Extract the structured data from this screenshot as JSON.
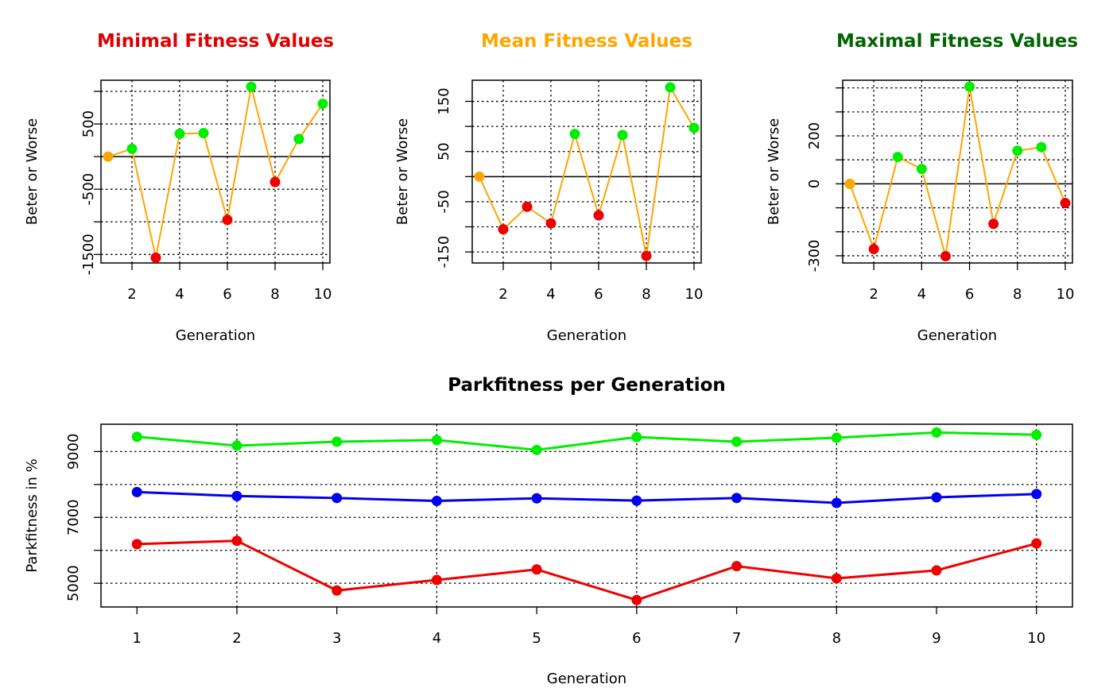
{
  "chart_data": [
    {
      "type": "line",
      "title": "Minimal Fitness Values",
      "title_color": "#e00000",
      "xlabel": "Generation",
      "ylabel": "Beter or Worse",
      "x": [
        1,
        2,
        3,
        4,
        5,
        6,
        7,
        8,
        9,
        10
      ],
      "values": [
        0,
        120,
        -1550,
        350,
        360,
        -970,
        1070,
        -390,
        270,
        810
      ],
      "point_colors": [
        "#ffa500",
        "#00ee00",
        "#ee0000",
        "#00ee00",
        "#00ee00",
        "#ee0000",
        "#00ee00",
        "#ee0000",
        "#00ee00",
        "#00ee00"
      ],
      "line_color": "#ffa500",
      "xlim": [
        0.7,
        10.3
      ],
      "ylim": [
        -1630,
        1170
      ],
      "xticks": [
        2,
        4,
        6,
        8,
        10
      ],
      "xticklabels": [
        "2",
        "4",
        "6",
        "8",
        "10"
      ],
      "yticks": [
        -1500,
        -1000,
        -500,
        0,
        500,
        1000
      ],
      "yticklabels": [
        "-1500",
        "",
        "-500",
        "",
        "500",
        ""
      ],
      "xgrid": [
        2,
        4,
        6,
        8,
        10
      ],
      "ygrid": [
        -1500,
        -1000,
        -500,
        500,
        1000
      ],
      "zero_line": true
    },
    {
      "type": "line",
      "title": "Mean Fitness Values",
      "title_color": "#ffa500",
      "xlabel": "Generation",
      "ylabel": "Beter or Worse",
      "x": [
        1,
        2,
        3,
        4,
        5,
        6,
        7,
        8,
        9,
        10
      ],
      "values": [
        0,
        -105,
        -60,
        -93,
        85,
        -77,
        83,
        -158,
        178,
        97
      ],
      "point_colors": [
        "#ffa500",
        "#ee0000",
        "#ee0000",
        "#ee0000",
        "#00ee00",
        "#ee0000",
        "#00ee00",
        "#ee0000",
        "#00ee00",
        "#00ee00"
      ],
      "line_color": "#ffa500",
      "xlim": [
        0.7,
        10.3
      ],
      "ylim": [
        -172,
        192
      ],
      "xticks": [
        2,
        4,
        6,
        8,
        10
      ],
      "xticklabels": [
        "2",
        "4",
        "6",
        "8",
        "10"
      ],
      "yticks": [
        -150,
        -100,
        -50,
        0,
        50,
        100,
        150
      ],
      "yticklabels": [
        "-150",
        "",
        "-50",
        "",
        "50",
        "",
        "150"
      ],
      "xgrid": [
        2,
        4,
        6,
        8,
        10
      ],
      "ygrid": [
        -150,
        -100,
        -50,
        50,
        100,
        150
      ],
      "zero_line": true
    },
    {
      "type": "line",
      "title": "Maximal Fitness Values",
      "title_color": "#006400",
      "xlabel": "Generation",
      "ylabel": "Beter or Worse",
      "x": [
        1,
        2,
        3,
        4,
        5,
        6,
        7,
        8,
        9,
        10
      ],
      "values": [
        0,
        -272,
        112,
        62,
        -302,
        405,
        -167,
        138,
        153,
        -80
      ],
      "point_colors": [
        "#ffa500",
        "#ee0000",
        "#00ee00",
        "#00ee00",
        "#ee0000",
        "#00ee00",
        "#ee0000",
        "#00ee00",
        "#00ee00",
        "#ee0000"
      ],
      "line_color": "#ffa500",
      "xlim": [
        0.7,
        10.3
      ],
      "ylim": [
        -330,
        432
      ],
      "xticks": [
        2,
        4,
        6,
        8,
        10
      ],
      "xticklabels": [
        "2",
        "4",
        "6",
        "8",
        "10"
      ],
      "yticks": [
        -300,
        -200,
        -100,
        0,
        100,
        200,
        300,
        400
      ],
      "yticklabels": [
        "-300",
        "",
        "",
        "0",
        "",
        "200",
        "",
        ""
      ],
      "xgrid": [
        2,
        4,
        6,
        8,
        10
      ],
      "ygrid": [
        -300,
        -200,
        -100,
        100,
        200,
        300,
        400
      ],
      "zero_line": true
    },
    {
      "type": "line",
      "title": "Parkfitness per Generation",
      "title_color": "#000000",
      "xlabel": "Generation",
      "ylabel": "Parkfitness in %",
      "x": [
        1,
        2,
        3,
        4,
        5,
        6,
        7,
        8,
        9,
        10
      ],
      "series": [
        {
          "color": "#00ee00",
          "values": [
            9450,
            9180,
            9300,
            9350,
            9050,
            9440,
            9300,
            9420,
            9580,
            9510
          ]
        },
        {
          "color": "#0000ee",
          "values": [
            7770,
            7650,
            7590,
            7500,
            7580,
            7510,
            7590,
            7440,
            7610,
            7710
          ]
        },
        {
          "color": "#ee0000",
          "values": [
            6190,
            6290,
            4780,
            5100,
            5420,
            4490,
            5520,
            5150,
            5390,
            6210
          ]
        }
      ],
      "xlim": [
        0.64,
        10.36
      ],
      "ylim": [
        4280,
        9830
      ],
      "xticks": [
        1,
        2,
        3,
        4,
        5,
        6,
        7,
        8,
        9,
        10
      ],
      "xticklabels": [
        "1",
        "2",
        "3",
        "4",
        "5",
        "6",
        "7",
        "8",
        "9",
        "10"
      ],
      "yticks": [
        5000,
        6000,
        7000,
        8000,
        9000
      ],
      "yticklabels": [
        "5000",
        "",
        "7000",
        "",
        "9000"
      ],
      "xgrid": [
        2,
        4,
        6,
        8,
        10
      ],
      "ygrid": [
        5000,
        6000,
        7000,
        8000,
        9000
      ],
      "zero_line": false
    }
  ]
}
